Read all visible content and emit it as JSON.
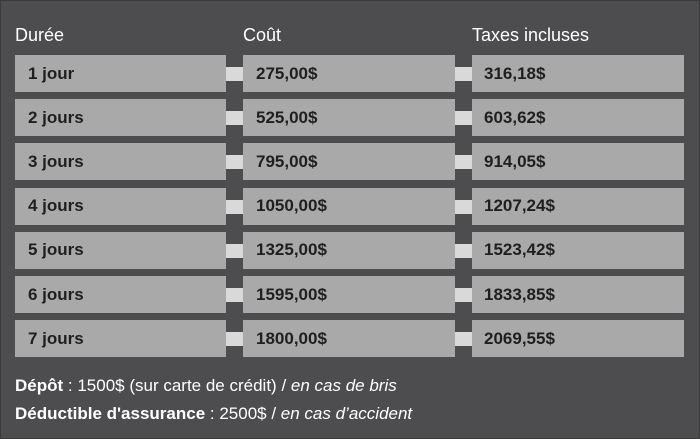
{
  "table": {
    "headers": [
      "Durée",
      "Coût",
      "Taxes incluses"
    ],
    "rows": [
      [
        "1 jour",
        "275,00$",
        "316,18$"
      ],
      [
        "2 jours",
        "525,00$",
        "603,62$"
      ],
      [
        "3 jours",
        "795,00$",
        "914,05$"
      ],
      [
        "4 jours",
        "1050,00$",
        "1207,24$"
      ],
      [
        "5 jours",
        "1325,00$",
        "1523,42$"
      ],
      [
        "6 jours",
        "1595,00$",
        "1833,85$"
      ],
      [
        "7 jours",
        "1800,00$",
        "2069,55$"
      ]
    ]
  },
  "notes": {
    "deposit": {
      "label": "Dépôt",
      "separator": " : ",
      "value": "1500$ (sur carte de crédit)",
      "slash": " / ",
      "condition": "en cas de bris"
    },
    "deductible": {
      "label": "Déductible d'assurance",
      "separator": " : ",
      "value": "2500$",
      "slash": " / ",
      "condition": "en cas d’accident"
    }
  },
  "colors": {
    "background": "#4d4d4f",
    "cell": "#a9a9a9",
    "connector": "#d9d9d9",
    "header_text": "#ffffff",
    "cell_text": "#1f1f1f"
  }
}
